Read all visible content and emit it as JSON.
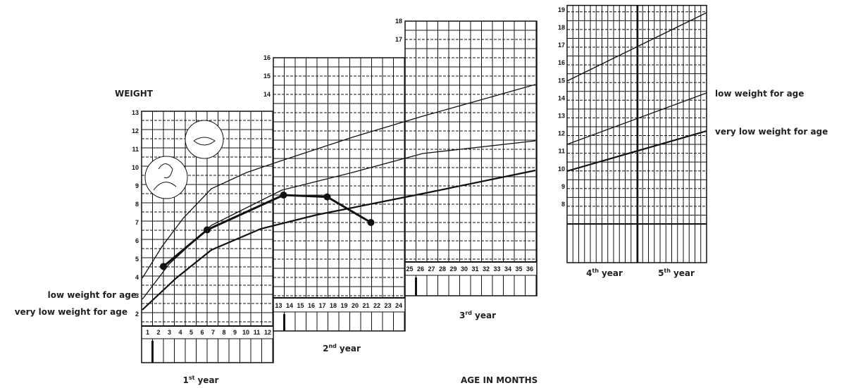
{
  "labels": {
    "weight": "WEIGHT",
    "age": "AGE IN MONTHS",
    "low_left": "low weight for age",
    "very_low_left": "very low weight for age",
    "low_right": "low weight for age",
    "very_low_right": "very low weight for age"
  },
  "years": [
    {
      "num": "1",
      "sup": "st",
      "word": "year"
    },
    {
      "num": "2",
      "sup": "nd",
      "word": "year"
    },
    {
      "num": "3",
      "sup": "rd",
      "word": "year"
    },
    {
      "num": "4",
      "sup": "th",
      "word": "year"
    },
    {
      "num": "5",
      "sup": "th",
      "word": "year"
    }
  ],
  "panels": [
    {
      "kg_ticks": [
        2,
        3,
        4,
        5,
        6,
        7,
        8,
        9,
        10,
        11,
        12,
        13
      ],
      "months": [
        1,
        2,
        3,
        4,
        5,
        6,
        7,
        8,
        9,
        10,
        11,
        12
      ]
    },
    {
      "kg_ticks": [
        14,
        15,
        16
      ],
      "months": [
        13,
        14,
        15,
        16,
        17,
        18,
        19,
        20,
        21,
        22,
        23,
        24
      ]
    },
    {
      "kg_ticks": [
        17,
        18
      ],
      "months": [
        25,
        26,
        27,
        28,
        29,
        30,
        31,
        32,
        33,
        34,
        35,
        36
      ]
    },
    {
      "kg_ticks": [
        8,
        9,
        10,
        11,
        12,
        13,
        14,
        15,
        16,
        17,
        18,
        19
      ]
    }
  ],
  "child": {
    "months": [
      2,
      6,
      13,
      17,
      21
    ],
    "kg": [
      4.6,
      6.6,
      8.5,
      8.4,
      7.0
    ]
  }
}
